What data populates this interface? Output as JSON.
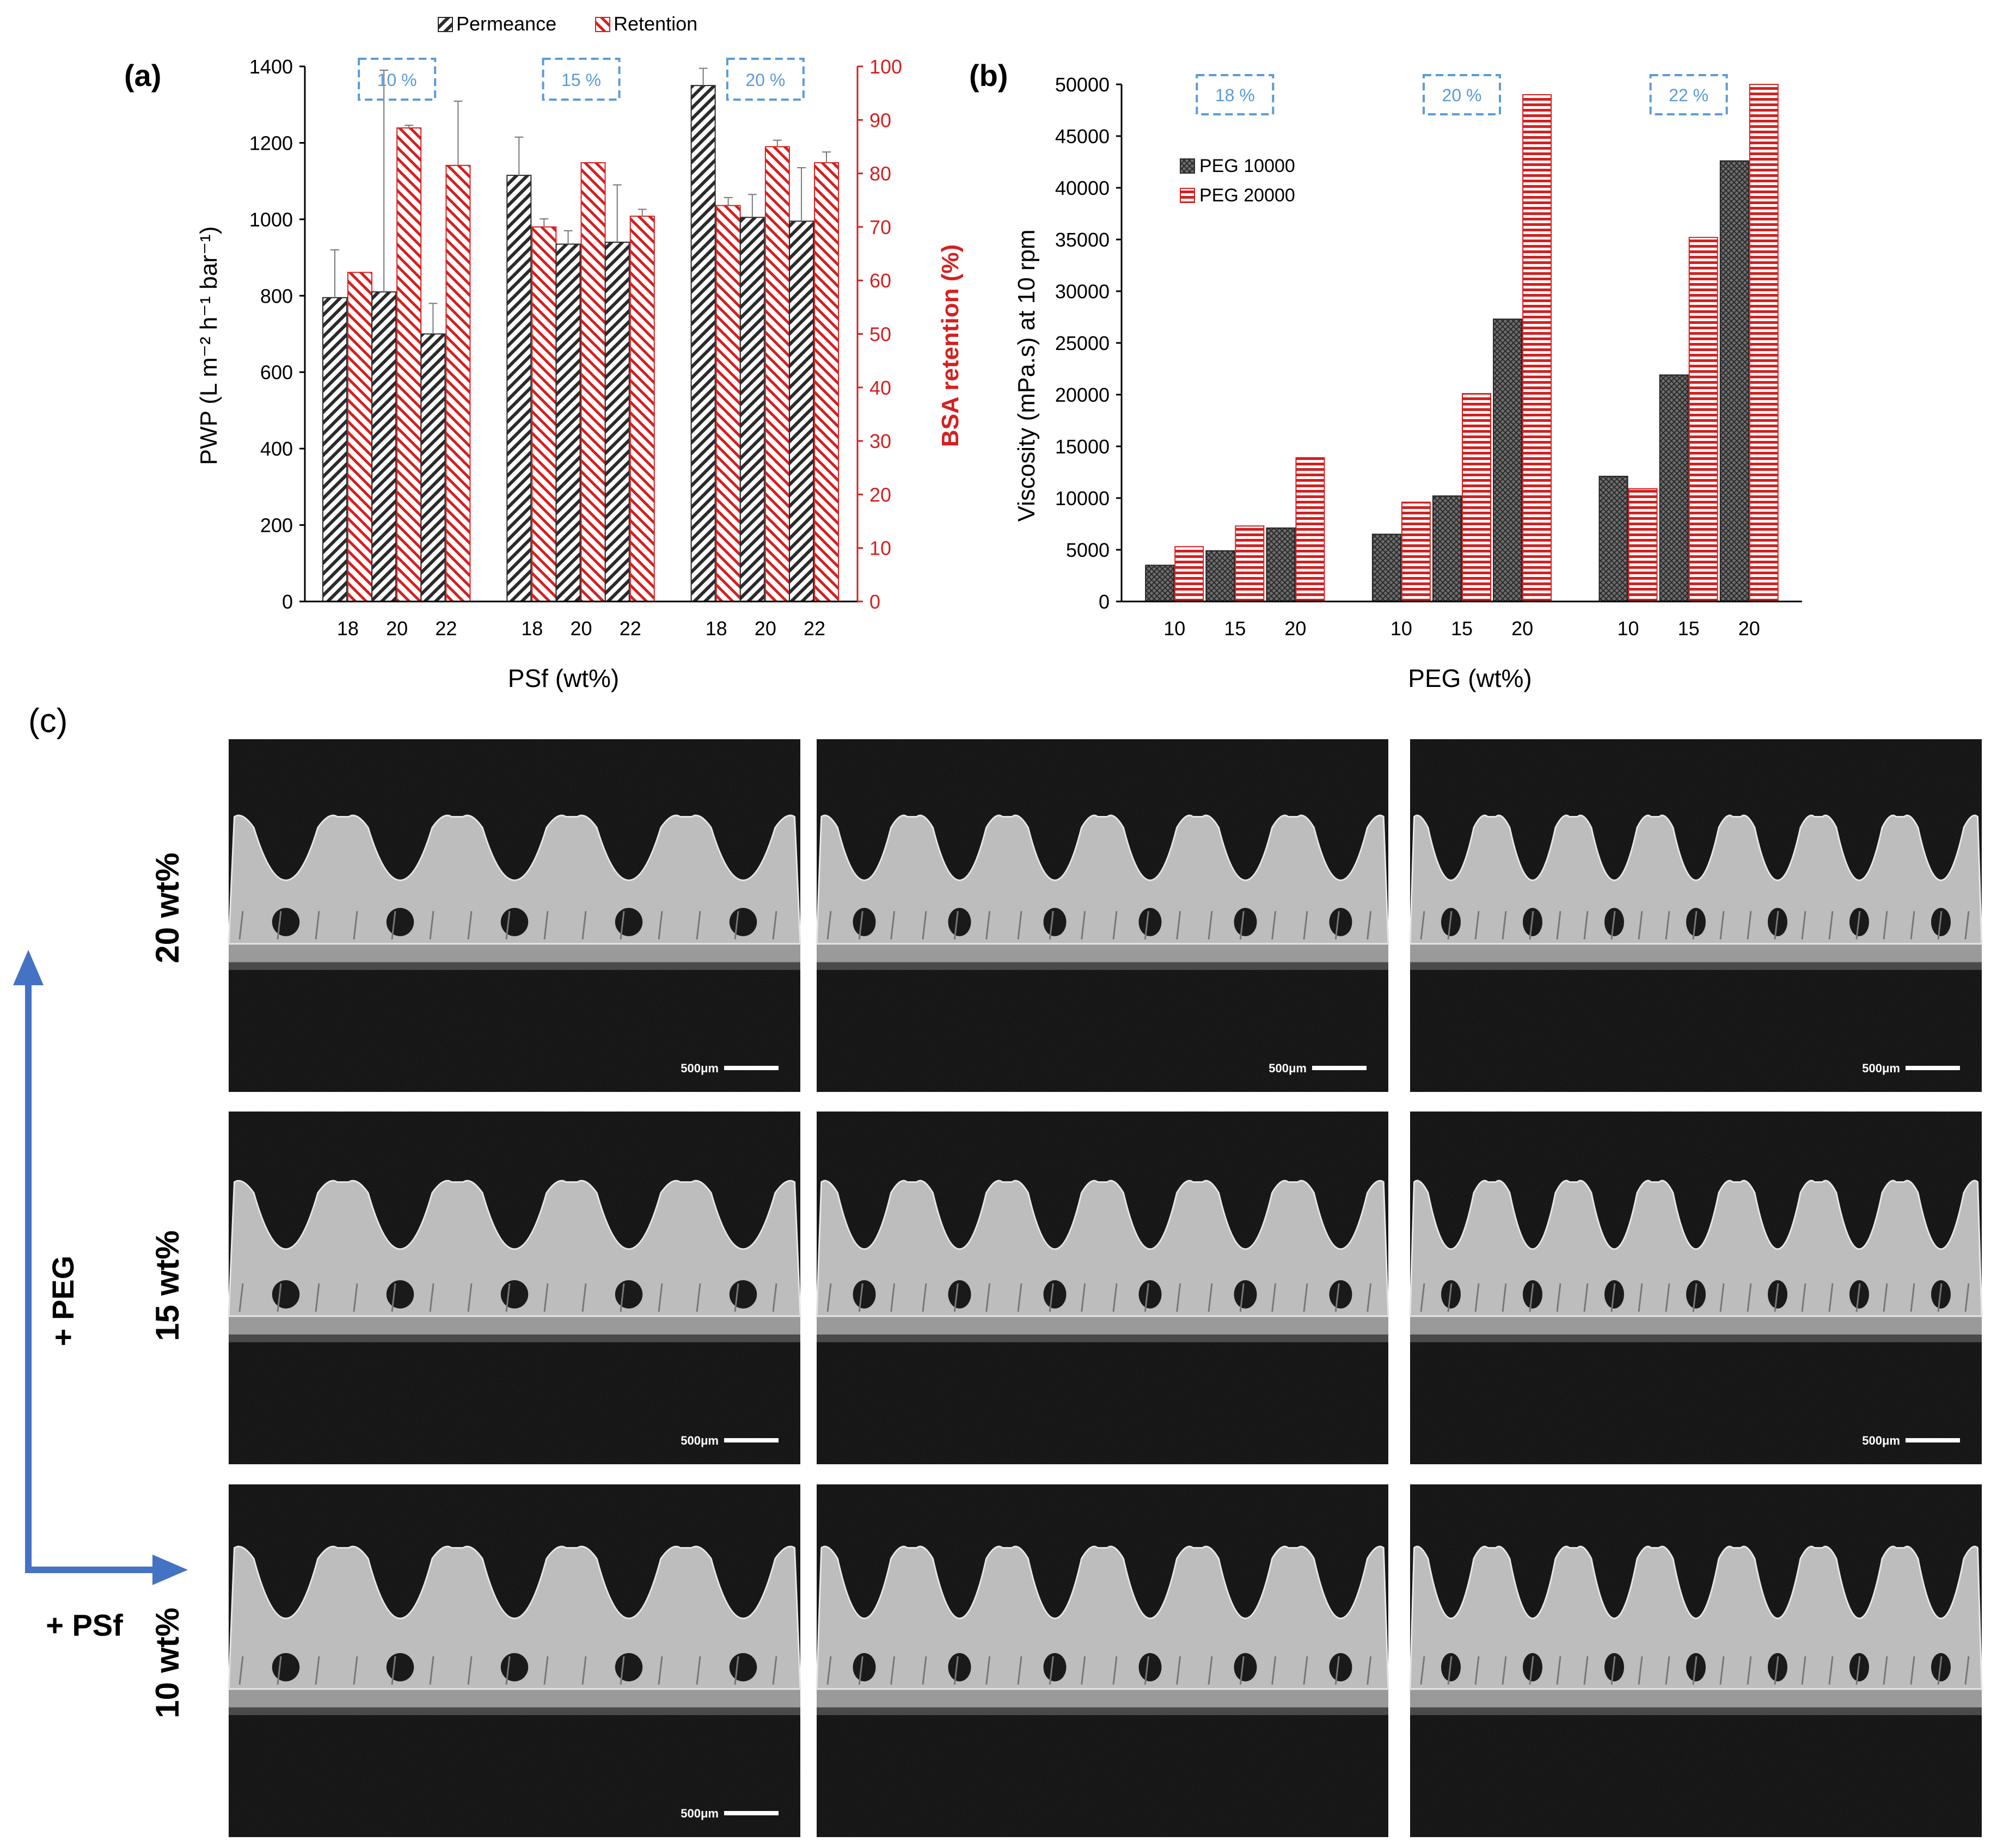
{
  "colors": {
    "permeance": "#2b2b2b",
    "retention": "#d42020",
    "red_axis": "#d42020",
    "box": "#5b9bd5",
    "arrow": "#4472c4"
  },
  "chart_data": [
    {
      "panel_label": "(a)",
      "type": "bar",
      "legend": [
        "Permeance",
        "Retention"
      ],
      "ylabel_left": "PWP (L m⁻² h⁻¹ bar⁻¹)",
      "ylabel_right": "BSA retention (%)",
      "xlabel": "PSf (wt%)",
      "ylim_left": [
        0,
        1400
      ],
      "ylim_right": [
        0,
        100
      ],
      "yticks_left": [
        0,
        200,
        400,
        600,
        800,
        1000,
        1200,
        1400
      ],
      "yticks_right": [
        0,
        10,
        20,
        30,
        40,
        50,
        60,
        70,
        80,
        90,
        100
      ],
      "groups": [
        {
          "box_label": "10 %",
          "categories": [
            "18",
            "20",
            "22"
          ],
          "permeance": [
            795,
            810,
            700
          ],
          "permeance_err": [
            125,
            580,
            80
          ],
          "retention": [
            61.5,
            88.5,
            81.5
          ],
          "retention_err": [
            0,
            0.5,
            12
          ]
        },
        {
          "box_label": "15 %",
          "categories": [
            "18",
            "20",
            "22"
          ],
          "permeance": [
            1115,
            935,
            940
          ],
          "permeance_err": [
            100,
            35,
            150
          ],
          "retention": [
            70,
            82,
            72
          ],
          "retention_err": [
            1.5,
            0,
            1.3
          ]
        },
        {
          "box_label": "20 %",
          "categories": [
            "18",
            "20",
            "22"
          ],
          "permeance": [
            1350,
            1005,
            995
          ],
          "permeance_err": [
            45,
            60,
            140
          ],
          "retention": [
            74,
            85,
            82
          ],
          "retention_err": [
            1.5,
            1.2,
            2
          ]
        }
      ]
    },
    {
      "panel_label": "(b)",
      "type": "bar",
      "legend": [
        "PEG 10000",
        "PEG 20000"
      ],
      "ylabel": "Viscosity (mPa.s) at 10 rpm",
      "xlabel": "PEG (wt%)",
      "ylim": [
        0,
        50000
      ],
      "yticks": [
        0,
        5000,
        10000,
        15000,
        20000,
        25000,
        30000,
        35000,
        40000,
        45000,
        50000
      ],
      "groups": [
        {
          "box_label": "18 %",
          "categories": [
            "10",
            "15",
            "20"
          ],
          "peg10000": [
            3500,
            4900,
            7100
          ],
          "peg20000": [
            5300,
            7300,
            13900
          ]
        },
        {
          "box_label": "20 %",
          "categories": [
            "10",
            "15",
            "20"
          ],
          "peg10000": [
            6500,
            10200,
            27300
          ],
          "peg20000": [
            9600,
            20100,
            49000
          ]
        },
        {
          "box_label": "22 %",
          "categories": [
            "10",
            "15",
            "20"
          ],
          "peg10000": [
            12100,
            21900,
            42600
          ],
          "peg20000": [
            10900,
            35200,
            50000
          ]
        }
      ]
    }
  ],
  "panel_c": {
    "label": "(c)",
    "row_labels": [
      "20 wt%",
      "15 wt%",
      "10 wt%"
    ],
    "axis_up_label": "+ PEG",
    "axis_right_label": "+ PSf",
    "scale_bar": "500μm"
  }
}
